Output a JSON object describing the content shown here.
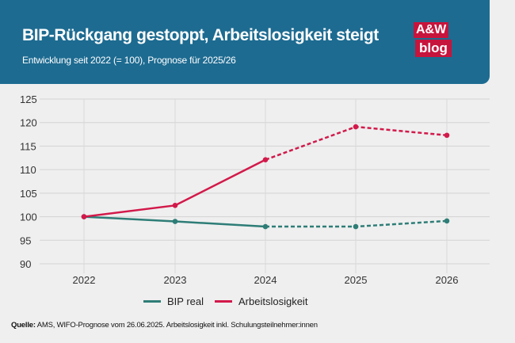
{
  "header": {
    "title": "BIP-Rückgang gestoppt, Arbeitslosigkeit steigt",
    "subtitle": "Entwicklung seit 2022 (= 100), Prognose für 2025/26"
  },
  "logo": {
    "line1": "A&W",
    "line2": "blog"
  },
  "colors": {
    "header_bg": "#1d6b91",
    "bip": "#2e7d77",
    "arbeitslosigkeit": "#d2194a",
    "logo": "#c7143c",
    "background": "#efefef"
  },
  "chart_data": {
    "type": "line",
    "title": "BIP-Rückgang gestoppt, Arbeitslosigkeit steigt",
    "subtitle": "Entwicklung seit 2022 (= 100), Prognose für 2025/26",
    "categories": [
      "2022",
      "2023",
      "2024",
      "2025",
      "2026"
    ],
    "ylim": [
      90,
      125
    ],
    "yticks": [
      125,
      120,
      115,
      110,
      105,
      100,
      95,
      90
    ],
    "forecast_from": "2024",
    "grid": true,
    "series": [
      {
        "name": "BIP real",
        "values": [
          100,
          99,
          97.9,
          97.9,
          99.1
        ],
        "color": "#2e7d77"
      },
      {
        "name": "Arbeitslosigkeit",
        "values": [
          100,
          102.4,
          112.1,
          119.1,
          117.3
        ],
        "color": "#d2194a"
      }
    ],
    "legend": [
      "BIP real",
      "Arbeitslosigkeit"
    ],
    "legend_position": "bottom"
  },
  "source": {
    "label": "Quelle:",
    "text": " AMS, WIFO-Prognose vom 26.06.2025. Arbeitslosigkeit inkl. Schulungsteilnehmer:innen"
  }
}
